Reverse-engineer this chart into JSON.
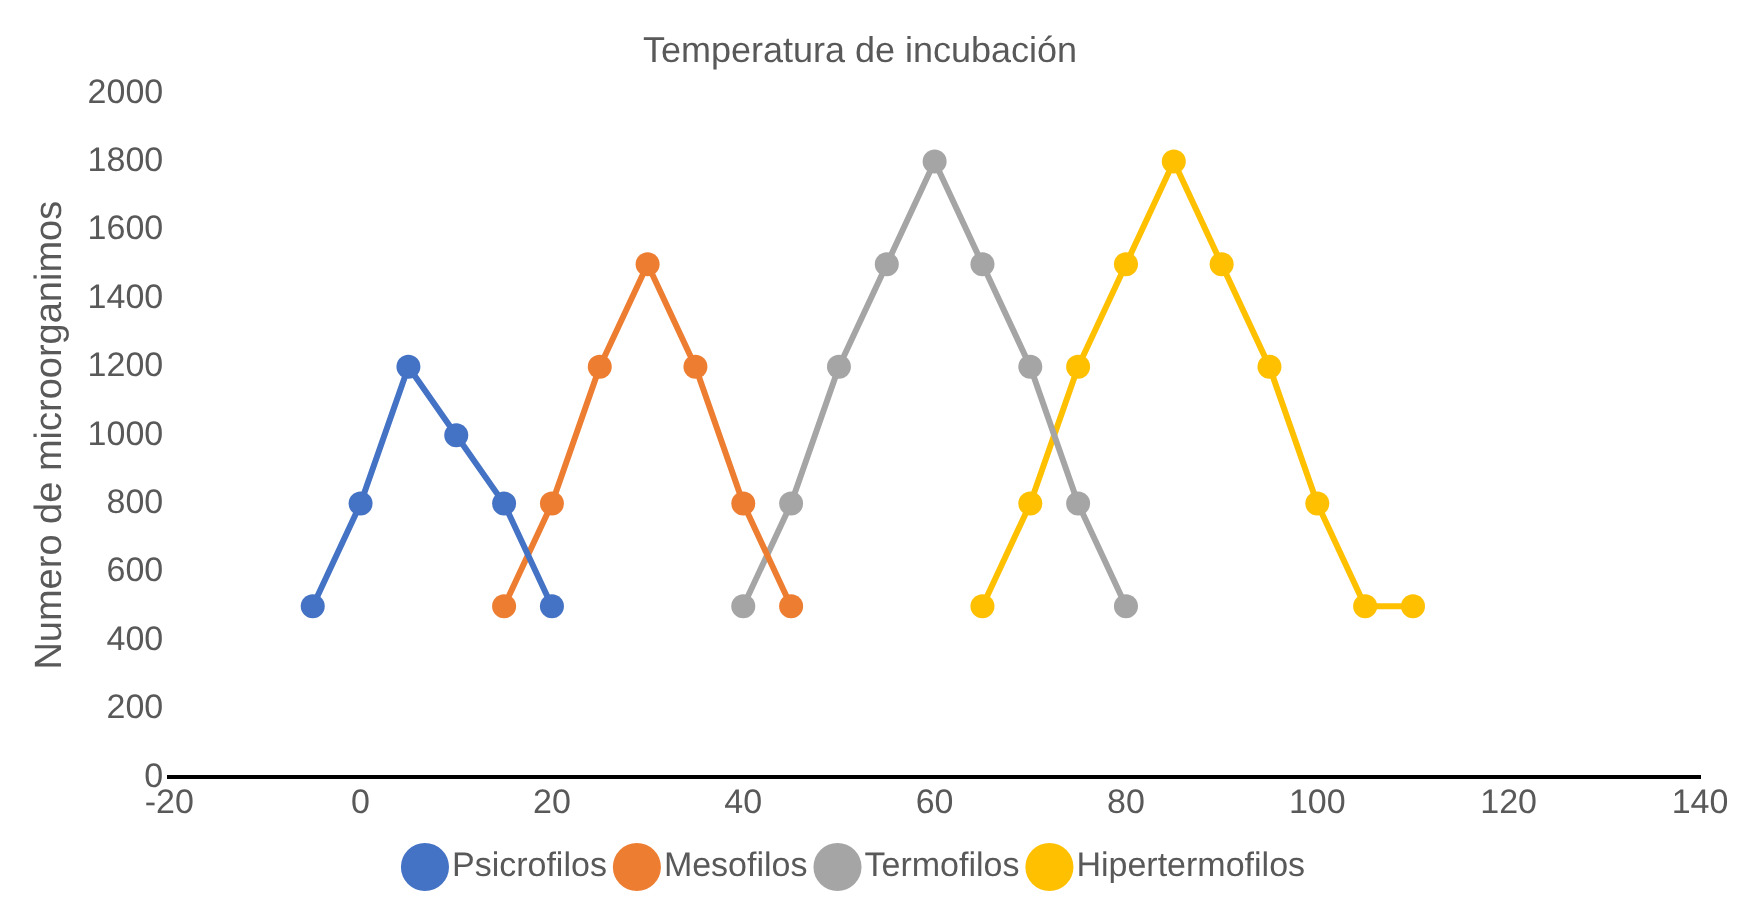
{
  "chart_data": {
    "type": "line",
    "title": "Temperatura de incubación",
    "ylabel": "Numero de microorganimos",
    "xlim": [
      -20,
      140
    ],
    "xticks": [
      -20,
      0,
      20,
      40,
      60,
      80,
      100,
      120,
      140
    ],
    "ylim": [
      0,
      2000
    ],
    "yticks": [
      0,
      200,
      400,
      600,
      800,
      1000,
      1200,
      1400,
      1600,
      1800,
      2000
    ],
    "grid": false,
    "legend": "bottom",
    "marker": "circle",
    "line_style": "solid",
    "series": [
      {
        "name": "Psicrofilos",
        "color": "#4472c4",
        "x": [
          -5,
          0,
          5,
          10,
          15,
          20
        ],
        "values": [
          500,
          800,
          1200,
          1000,
          800,
          500
        ]
      },
      {
        "name": "Mesofilos",
        "color": "#ed7d31",
        "x": [
          15,
          20,
          25,
          30,
          35,
          40,
          45
        ],
        "values": [
          500,
          800,
          1200,
          1500,
          1200,
          800,
          500
        ]
      },
      {
        "name": "Termofilos",
        "color": "#a5a5a5",
        "x": [
          40,
          45,
          50,
          55,
          60,
          65,
          70,
          75,
          80
        ],
        "values": [
          500,
          800,
          1200,
          1500,
          1800,
          1500,
          1200,
          800,
          500
        ]
      },
      {
        "name": "Hipertermofilos",
        "color": "#ffc000",
        "x": [
          65,
          70,
          75,
          80,
          85,
          90,
          95,
          100,
          105,
          110
        ],
        "values": [
          500,
          800,
          1200,
          1500,
          1800,
          1500,
          1200,
          800,
          500,
          500
        ]
      }
    ]
  }
}
